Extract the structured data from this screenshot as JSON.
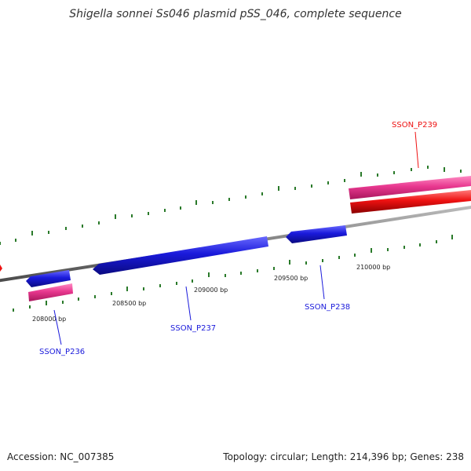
{
  "title": "Shigella sonnei Ss046 plasmid pSS_046, complete sequence",
  "footer": {
    "accession": "Accession: NC_007385",
    "summary": "Topology: circular; Length: 214,396 bp; Genes: 238"
  },
  "map": {
    "ticks": [
      "208000 bp",
      "208500 bp",
      "209000 bp",
      "209500 bp",
      "210000 bp"
    ],
    "genes": [
      {
        "name": "SSON_P236",
        "strand": "reverse",
        "color": "#1a1adb"
      },
      {
        "name": "SSON_P237",
        "strand": "reverse",
        "color": "#1a1adb"
      },
      {
        "name": "SSON_P238",
        "strand": "reverse",
        "color": "#1a1adb"
      },
      {
        "name": "SSON_P239",
        "strand": "forward",
        "color": "#ee1111"
      }
    ],
    "colors": {
      "backbone": "#808080",
      "reverse_gene": "#1a1adb",
      "forward_gene": "#ee1111",
      "cds_feature": "#e8388f",
      "tick_mark": "#2a7a2a"
    }
  }
}
